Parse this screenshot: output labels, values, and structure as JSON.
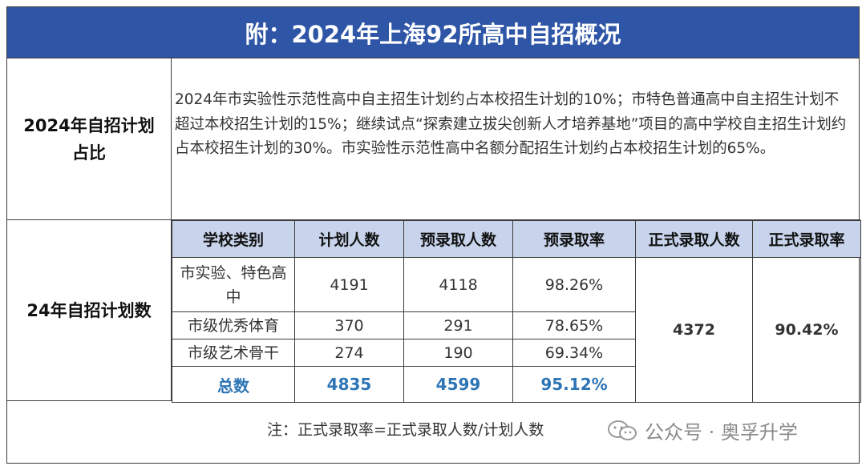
{
  "title": "附：2024年上海92所高中自招概况",
  "ratio_section": {
    "label": "2024年自招计划占比",
    "text": "2024年市实验性示范性高中自主招生计划约占本校招生计划的10%；市特色普通高中自主招生计划不超过本校招生计划的15%；继续试点“探索建立拔尖创新人才培养基地”项目的高中学校自主招生计划约占本校招生计划的30%。市实验性示范性高中名额分配招生计划约占本校招生计划的65%。"
  },
  "plan_section": {
    "label": "24年自招计划数",
    "headers": [
      "学校类别",
      "计划人数",
      "预录取人数",
      "预录取率",
      "正式录取人数",
      "正式录取率"
    ],
    "rows": [
      {
        "category": "市实验、特色高中",
        "planned": "4191",
        "pre_admitted": "4118",
        "pre_rate": "98.26%"
      },
      {
        "category": "市级优秀体育",
        "planned": "370",
        "pre_admitted": "291",
        "pre_rate": "78.65%"
      },
      {
        "category": "市级艺术骨干",
        "planned": "274",
        "pre_admitted": "190",
        "pre_rate": "69.34%"
      }
    ],
    "total": {
      "category": "总数",
      "planned": "4835",
      "pre_admitted": "4599",
      "pre_rate": "95.12%"
    },
    "formal_admitted": "4372",
    "formal_rate": "90.42%"
  },
  "note": "注：正式录取率=正式录取人数/计划人数",
  "watermark": {
    "icon": "wechat-icon",
    "text": "公众号 · 奥孚升学"
  },
  "colors": {
    "title_bg": "#2e55a6",
    "header_bg": "#c8d4ec",
    "total_text": "#2e75b6",
    "formal_text": "#c00000"
  }
}
